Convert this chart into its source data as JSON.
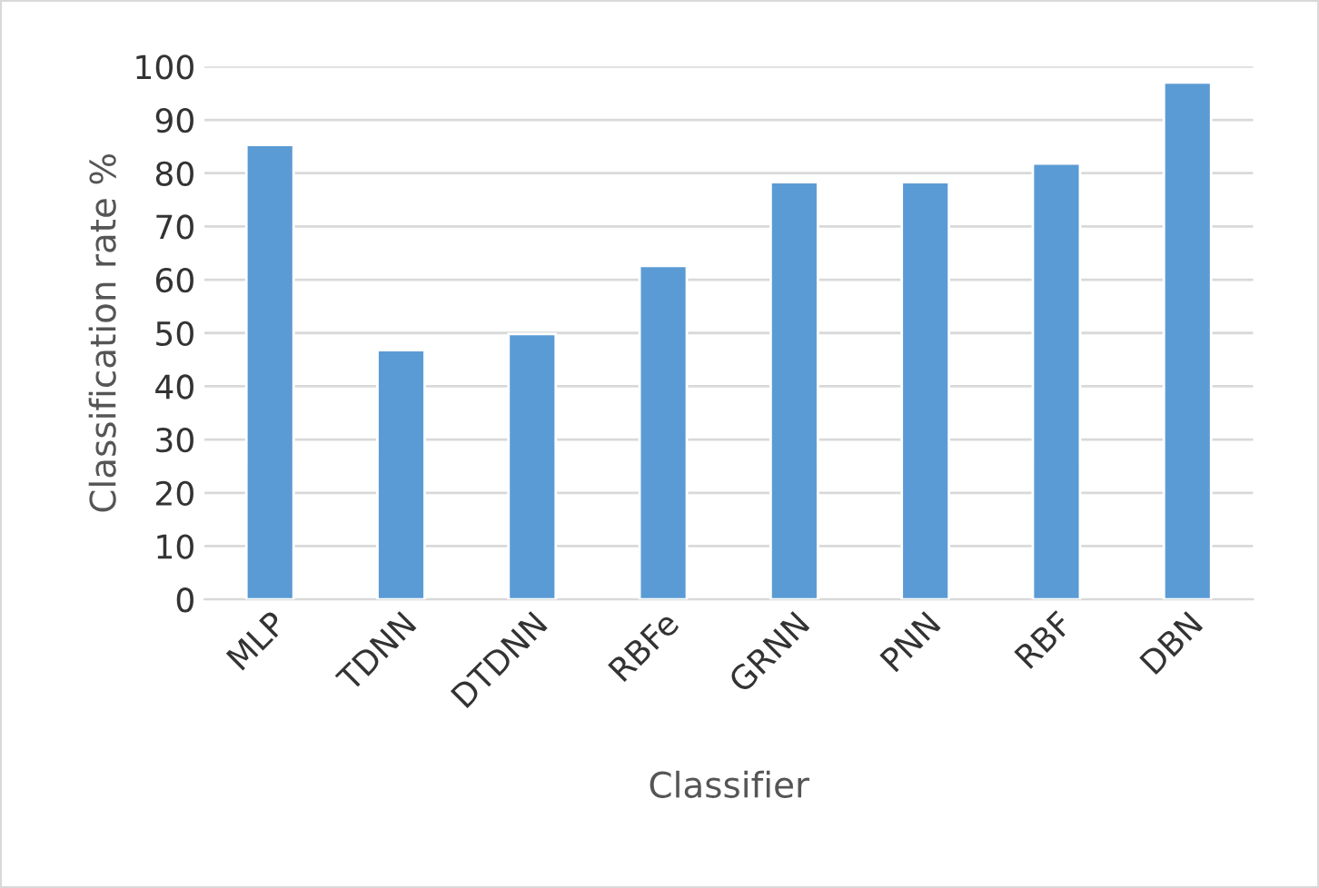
{
  "chart_data": {
    "type": "bar",
    "xlabel": "Classifier",
    "ylabel": "Classification rate %",
    "categories": [
      "MLP",
      "TDNN",
      "DTDNN",
      "RBFe",
      "GRNN",
      "PNN",
      "RBF",
      "DBN"
    ],
    "values": [
      85.3,
      46.8,
      49.8,
      62.6,
      78.3,
      78.3,
      81.8,
      97.0
    ],
    "color": "#5b9bd5",
    "ylim": [
      0,
      100
    ],
    "yticks": [
      0,
      10,
      20,
      30,
      40,
      50,
      60,
      70,
      80,
      90,
      100
    ],
    "grid": "y",
    "legend": false
  }
}
